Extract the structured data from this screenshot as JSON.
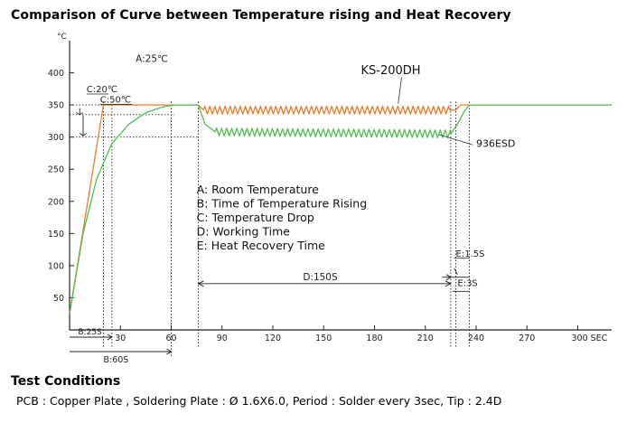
{
  "page": {
    "title": "Comparison of Curve between Temperature rising and Heat Recovery",
    "test_conditions_heading": "Test Conditions",
    "test_conditions_text": "PCB : Copper Plate ,  Soldering Plate : Ø 1.6X6.0,  Period : Solder every 3sec,  Tip : 2.4D"
  },
  "chart_data": {
    "type": "line",
    "x_unit": "SEC",
    "y_unit": "°C",
    "xlim": [
      0,
      320
    ],
    "ylim": [
      0,
      450
    ],
    "x_ticks": [
      30,
      60,
      90,
      120,
      150,
      180,
      210,
      240,
      270,
      300
    ],
    "y_ticks": [
      50,
      100,
      150,
      200,
      250,
      300,
      350,
      400
    ],
    "colors": {
      "ks200dh": "#f07a2a",
      "esd936": "#4fbf4f",
      "axis": "#222222",
      "guide": "#222222"
    },
    "series": [
      {
        "name": "KS-200DH",
        "color": "#f07a2a",
        "points": [
          [
            0,
            25
          ],
          [
            20,
            350
          ],
          [
            76,
            350
          ],
          [
            79,
            342
          ],
          [
            225,
            342
          ],
          [
            228,
            342
          ],
          [
            231,
            350
          ],
          [
            320,
            350
          ]
        ],
        "working_oscillation": {
          "from": 76,
          "to": 225,
          "amplitude": 6,
          "period": 3
        }
      },
      {
        "name": "936ESD",
        "color": "#4fbf4f",
        "points": [
          [
            0,
            25
          ],
          [
            8,
            150
          ],
          [
            16,
            235
          ],
          [
            25,
            290
          ],
          [
            35,
            320
          ],
          [
            45,
            338
          ],
          [
            55,
            347
          ],
          [
            62,
            350
          ],
          [
            76,
            350
          ],
          [
            80,
            320
          ],
          [
            86,
            308
          ],
          [
            225,
            305
          ],
          [
            229,
            320
          ],
          [
            233,
            340
          ],
          [
            236,
            350
          ],
          [
            320,
            350
          ]
        ],
        "working_oscillation": {
          "from": 82,
          "to": 225,
          "amplitude": 6,
          "period": 3
        }
      }
    ],
    "annotations": {
      "a": "A:25℃",
      "c20": "C:20℃",
      "c50": "C:50℃",
      "d": "D:150S",
      "e15": "E:1.5S",
      "e3": "E:3S",
      "b25": "B:25S",
      "b60": "B:60S"
    },
    "legend": [
      "A: Room Temperature",
      "B: Time of Temperature Rising",
      "C: Temperature Drop",
      "D: Working Time",
      "E: Heat Recovery Time"
    ]
  }
}
